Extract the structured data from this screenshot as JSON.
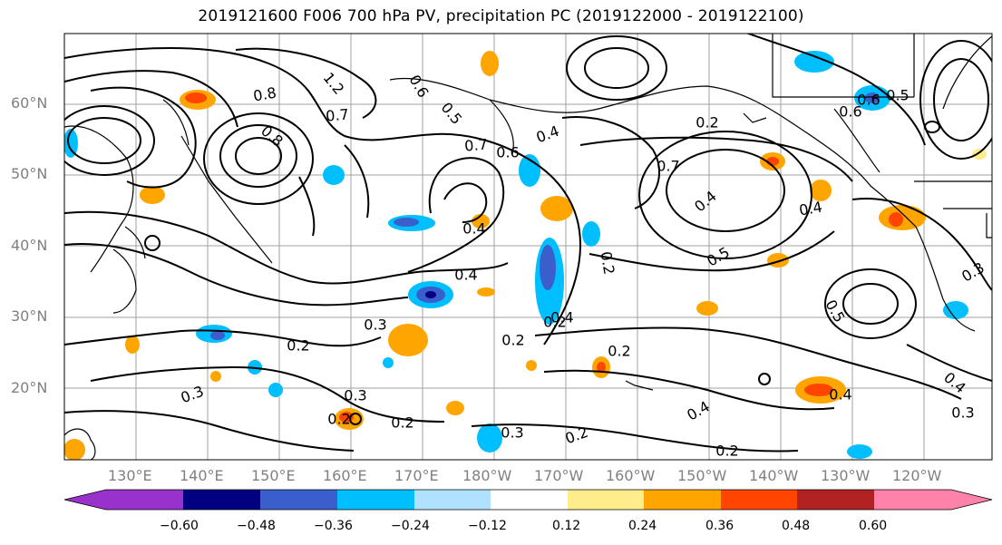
{
  "title": "2019121600 F006 700 hPa PV, precipitation PC (2019122000 - 2019122100)",
  "lat_labels": [
    "60°N",
    "50°N",
    "40°N",
    "30°N",
    "20°N"
  ],
  "lon_labels": [
    "130°E",
    "140°E",
    "150°E",
    "160°E",
    "170°E",
    "180°W",
    "170°W",
    "160°W",
    "150°W",
    "140°W",
    "130°W",
    "120°W"
  ],
  "colorbar": {
    "ticks": [
      "−0.60",
      "−0.48",
      "−0.36",
      "−0.24",
      "−0.12",
      "0.12",
      "0.24",
      "0.36",
      "0.48",
      "0.60"
    ],
    "colors": [
      "#9932cc",
      "#000080",
      "#3a5fcd",
      "#00bfff",
      "#b0e2ff",
      "#ffffff",
      "#ffec8b",
      "#ffa500",
      "#ff4500",
      "#b22222",
      "#ff82ab"
    ]
  },
  "contour_labels": [
    "0.8",
    "0.7",
    "0.8",
    "1.2",
    "0.5",
    "0.6",
    "0.4",
    "0.7",
    "0.6",
    "0.7",
    "0.4",
    "0.5",
    "0.3",
    "0.4",
    "0.2",
    "0.2",
    "0.4",
    "0.2",
    "0.3",
    "0.3",
    "0.2",
    "0.2",
    "0.4",
    "0.2",
    "0.3",
    "0.2",
    "0.4",
    "0.6",
    "0.4",
    "0.5",
    "0.3",
    "0.2",
    "0.4",
    "0.3",
    "0.2",
    "0.2",
    "0.4",
    "0.6",
    "0.5"
  ]
}
